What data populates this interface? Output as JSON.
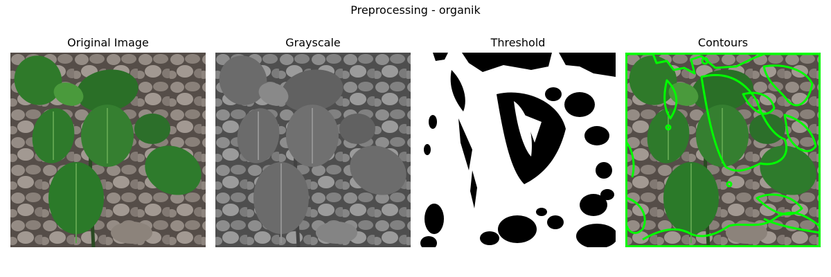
{
  "figure": {
    "suptitle": "Preprocessing - organik",
    "panels": [
      {
        "id": "original",
        "title": "Original Image"
      },
      {
        "id": "grayscale",
        "title": "Grayscale"
      },
      {
        "id": "threshold",
        "title": "Threshold"
      },
      {
        "id": "contours",
        "title": "Contours"
      }
    ]
  },
  "colors": {
    "leaf": "#2f7a2a",
    "leaf_dark": "#1f4f1c",
    "soil": "#8a7f76",
    "contour": "#00ff00"
  }
}
